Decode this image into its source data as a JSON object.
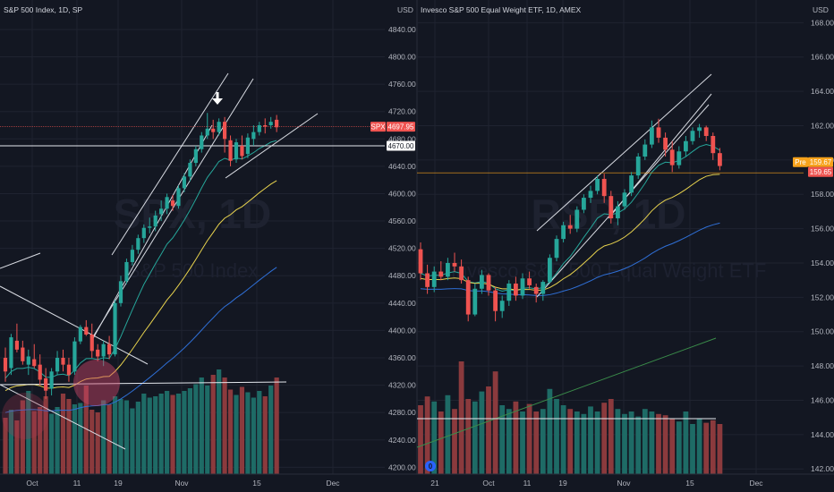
{
  "chart_data": [
    {
      "type": "candlestick",
      "title": "S&P 500 Index, 1D, SP",
      "watermark_symbol": "SPX, 1D",
      "watermark_name": "S&P 500 Index",
      "currency": "USD",
      "yticks": [
        4200,
        4240,
        4280,
        4320,
        4360,
        4400,
        4440,
        4480,
        4520,
        4560,
        4600,
        4640,
        4680,
        4720,
        4760,
        4800,
        4840
      ],
      "ytick_labels": [
        "4200.00",
        "4240.00",
        "4280.00",
        "4320.00",
        "4360.00",
        "4400.00",
        "4440.00",
        "4480.00",
        "4520.00",
        "4560.00",
        "4600.00",
        "4640.00",
        "4680.00",
        "4720.00",
        "4760.00",
        "4800.00",
        "4840.00"
      ],
      "ylim": [
        4190,
        4870
      ],
      "x_labels": [
        "Oct",
        "11",
        "19",
        "Nov",
        "15",
        "Dec"
      ],
      "last_price_label": "4697.95",
      "last_price": 4697.95,
      "symbol_tag": "SPX",
      "level_label": "4670.00",
      "level": 4670.0,
      "ohlc": [
        [
          4360,
          4375,
          4325,
          4340
        ],
        [
          4345,
          4395,
          4335,
          4390
        ],
        [
          4385,
          4410,
          4368,
          4372
        ],
        [
          4375,
          4385,
          4350,
          4355
        ],
        [
          4350,
          4372,
          4335,
          4362
        ],
        [
          4358,
          4380,
          4345,
          4348
        ],
        [
          4350,
          4365,
          4320,
          4328
        ],
        [
          4330,
          4345,
          4300,
          4312
        ],
        [
          4315,
          4345,
          4305,
          4340
        ],
        [
          4340,
          4370,
          4335,
          4360
        ],
        [
          4360,
          4372,
          4340,
          4350
        ],
        [
          4350,
          4360,
          4325,
          4335
        ],
        [
          4340,
          4390,
          4335,
          4384
        ],
        [
          4384,
          4408,
          4380,
          4405
        ],
        [
          4405,
          4415,
          4392,
          4394
        ],
        [
          4394,
          4410,
          4360,
          4370
        ],
        [
          4372,
          4380,
          4355,
          4362
        ],
        [
          4362,
          4385,
          4348,
          4380
        ],
        [
          4380,
          4392,
          4358,
          4365
        ],
        [
          4365,
          4445,
          4362,
          4440
        ],
        [
          4440,
          4480,
          4435,
          4472
        ],
        [
          4472,
          4505,
          4468,
          4500
        ],
        [
          4500,
          4525,
          4495,
          4518
        ],
        [
          4518,
          4540,
          4512,
          4535
        ],
        [
          4535,
          4555,
          4528,
          4550
        ],
        [
          4550,
          4565,
          4542,
          4552
        ],
        [
          4552,
          4575,
          4545,
          4568
        ],
        [
          4570,
          4590,
          4560,
          4578
        ],
        [
          4578,
          4600,
          4570,
          4595
        ],
        [
          4590,
          4598,
          4575,
          4582
        ],
        [
          4582,
          4612,
          4578,
          4608
        ],
        [
          4608,
          4630,
          4602,
          4625
        ],
        [
          4625,
          4650,
          4618,
          4645
        ],
        [
          4645,
          4670,
          4640,
          4665
        ],
        [
          4665,
          4690,
          4660,
          4685
        ],
        [
          4685,
          4718,
          4680,
          4695
        ],
        [
          4695,
          4708,
          4680,
          4690
        ],
        [
          4690,
          4710,
          4685,
          4705
        ],
        [
          4705,
          4712,
          4660,
          4680
        ],
        [
          4678,
          4685,
          4640,
          4648
        ],
        [
          4650,
          4680,
          4645,
          4675
        ],
        [
          4670,
          4685,
          4650,
          4655
        ],
        [
          4658,
          4688,
          4652,
          4682
        ],
        [
          4680,
          4700,
          4670,
          4690
        ],
        [
          4690,
          4705,
          4685,
          4700
        ],
        [
          4700,
          4710,
          4688,
          4698
        ],
        [
          4700,
          4712,
          4695,
          4705
        ],
        [
          4708,
          4715,
          4690,
          4697
        ]
      ],
      "volume_relative": [
        0.42,
        0.48,
        0.4,
        0.55,
        0.62,
        0.47,
        0.5,
        0.58,
        0.45,
        0.5,
        0.6,
        0.56,
        0.52,
        0.53,
        0.66,
        0.48,
        0.46,
        0.55,
        0.52,
        0.58,
        0.56,
        0.55,
        0.49,
        0.54,
        0.6,
        0.57,
        0.58,
        0.6,
        0.62,
        0.59,
        0.6,
        0.62,
        0.64,
        0.67,
        0.72,
        0.66,
        0.74,
        0.78,
        0.72,
        0.63,
        0.59,
        0.65,
        0.61,
        0.57,
        0.62,
        0.58,
        0.66,
        0.72
      ]
    },
    {
      "type": "candlestick",
      "title": "Invesco S&P 500 Equal Weight ETF, 1D, AMEX",
      "watermark_symbol": "RSP, 1D",
      "watermark_name": "Invesco S&P 500 Equal Weight ETF",
      "currency": "USD",
      "yticks": [
        142,
        144,
        146,
        148,
        150,
        152,
        154,
        156,
        158,
        160,
        162,
        164,
        166,
        168
      ],
      "ytick_labels": [
        "142.00",
        "144.00",
        "146.00",
        "148.00",
        "150.00",
        "152.00",
        "154.00",
        "156.00",
        "158.00",
        "160.00",
        "162.00",
        "164.00",
        "166.00",
        "168.00"
      ],
      "ylim": [
        141.7,
        168.8
      ],
      "x_labels": [
        "21",
        "Oct",
        "11",
        "19",
        "Nov",
        "15",
        "Dec"
      ],
      "pre_tag": "Pre",
      "pre_price_label": "159.67",
      "pre_price": 159.67,
      "last_price_label": "159.65",
      "last_price": 159.65,
      "ohlc": [
        [
          154.8,
          155.2,
          153.0,
          153.4
        ],
        [
          153.4,
          153.9,
          152.2,
          152.6
        ],
        [
          152.6,
          153.8,
          152.3,
          153.5
        ],
        [
          153.5,
          154.1,
          153.0,
          153.2
        ],
        [
          153.2,
          154.3,
          153.0,
          154.0
        ],
        [
          154.0,
          154.6,
          153.5,
          153.8
        ],
        [
          153.8,
          154.2,
          152.8,
          153.0
        ],
        [
          153.0,
          153.2,
          150.6,
          151.0
        ],
        [
          151.0,
          152.8,
          150.9,
          152.5
        ],
        [
          152.5,
          153.6,
          152.2,
          153.3
        ],
        [
          153.3,
          153.4,
          152.1,
          152.4
        ],
        [
          152.4,
          152.6,
          150.6,
          151.2
        ],
        [
          151.2,
          152.1,
          150.8,
          151.8
        ],
        [
          151.8,
          153.0,
          151.5,
          152.8
        ],
        [
          152.8,
          153.2,
          151.8,
          152.1
        ],
        [
          152.1,
          153.4,
          151.9,
          153.1
        ],
        [
          153.1,
          153.5,
          152.5,
          152.7
        ],
        [
          152.6,
          152.8,
          151.7,
          152.2
        ],
        [
          152.2,
          153.0,
          151.8,
          152.9
        ],
        [
          152.9,
          154.5,
          152.8,
          154.3
        ],
        [
          154.3,
          155.6,
          154.1,
          155.4
        ],
        [
          155.4,
          156.4,
          155.2,
          156.2
        ],
        [
          156.2,
          156.8,
          155.7,
          156.0
        ],
        [
          156.0,
          157.3,
          155.8,
          157.1
        ],
        [
          157.1,
          158.0,
          156.9,
          157.8
        ],
        [
          157.8,
          158.5,
          157.5,
          158.2
        ],
        [
          158.2,
          159.1,
          158.0,
          158.9
        ],
        [
          158.9,
          159.2,
          157.5,
          157.9
        ],
        [
          157.9,
          158.2,
          156.3,
          156.6
        ],
        [
          156.6,
          157.6,
          156.2,
          157.3
        ],
        [
          157.3,
          158.3,
          157.1,
          158.1
        ],
        [
          158.1,
          159.3,
          157.9,
          159.1
        ],
        [
          159.1,
          160.4,
          158.9,
          160.2
        ],
        [
          160.2,
          161.2,
          160.0,
          160.9
        ],
        [
          160.9,
          162.3,
          160.7,
          161.9
        ],
        [
          161.9,
          162.4,
          161.0,
          161.3
        ],
        [
          161.3,
          161.6,
          160.2,
          160.6
        ],
        [
          160.6,
          161.1,
          159.3,
          159.7
        ],
        [
          159.7,
          160.8,
          159.5,
          160.5
        ],
        [
          160.5,
          161.4,
          160.2,
          161.1
        ],
        [
          161.1,
          161.9,
          160.9,
          161.7
        ],
        [
          161.7,
          162.1,
          161.3,
          161.9
        ],
        [
          161.9,
          162.0,
          161.1,
          161.4
        ],
        [
          161.4,
          161.6,
          160.0,
          160.4
        ],
        [
          160.4,
          160.7,
          159.4,
          159.65
        ]
      ],
      "volume_relative": [
        0.55,
        0.62,
        0.58,
        0.5,
        0.63,
        0.52,
        0.9,
        0.6,
        0.58,
        0.66,
        0.7,
        0.82,
        0.55,
        0.52,
        0.58,
        0.5,
        0.56,
        0.5,
        0.52,
        0.68,
        0.6,
        0.55,
        0.52,
        0.5,
        0.48,
        0.54,
        0.5,
        0.57,
        0.6,
        0.52,
        0.48,
        0.5,
        0.46,
        0.52,
        0.5,
        0.48,
        0.47,
        0.44,
        0.42,
        0.5,
        0.4,
        0.44,
        0.41,
        0.43,
        0.4
      ]
    }
  ]
}
